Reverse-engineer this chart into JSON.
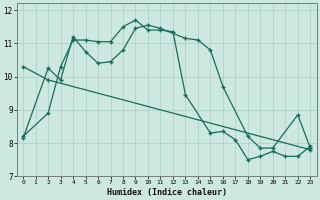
{
  "xlabel": "Humidex (Indice chaleur)",
  "bg_color": "#cce8e0",
  "line_color": "#1a6b5a",
  "grid_color": "#aacfc8",
  "xlim": [
    -0.5,
    23.5
  ],
  "ylim": [
    7,
    12.2
  ],
  "xticks": [
    0,
    1,
    2,
    3,
    4,
    5,
    6,
    7,
    8,
    9,
    10,
    11,
    12,
    13,
    14,
    15,
    16,
    17,
    18,
    19,
    20,
    21,
    22,
    23
  ],
  "yticks": [
    7,
    8,
    9,
    10,
    11,
    12
  ],
  "line1_x": [
    0,
    2,
    3,
    4,
    5,
    6,
    7,
    8,
    9,
    10,
    11,
    12,
    13,
    15,
    16,
    17,
    18,
    19,
    20,
    21,
    22,
    23
  ],
  "line1_y": [
    8.2,
    8.9,
    10.3,
    11.1,
    11.1,
    11.05,
    11.05,
    11.5,
    11.7,
    11.4,
    11.4,
    11.35,
    9.45,
    8.3,
    8.35,
    8.1,
    7.5,
    7.6,
    7.75,
    7.6,
    7.6,
    7.9
  ],
  "line2_x": [
    0,
    2,
    3,
    4,
    5,
    6,
    7,
    8,
    9,
    10,
    11,
    13,
    14,
    15,
    16,
    18,
    19,
    20,
    22,
    23
  ],
  "line2_y": [
    8.15,
    10.25,
    9.9,
    11.2,
    10.75,
    10.4,
    10.45,
    10.8,
    11.45,
    11.55,
    11.45,
    11.15,
    11.1,
    10.8,
    9.7,
    8.2,
    7.85,
    7.85,
    8.85,
    7.85
  ],
  "line3_x": [
    0,
    2,
    23
  ],
  "line3_y": [
    10.3,
    9.9,
    7.8
  ]
}
